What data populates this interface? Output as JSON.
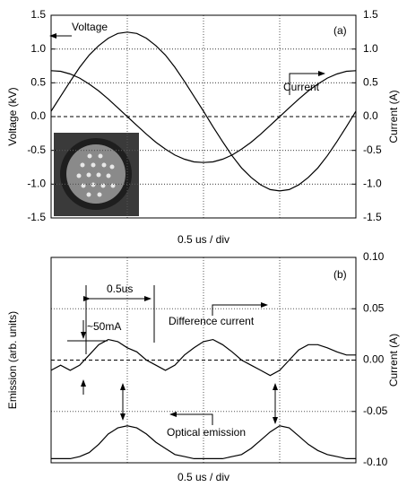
{
  "chart_data": [
    {
      "type": "line",
      "annotations": [
        "(a)"
      ],
      "xlabel": "0.5 us / div",
      "ylabel": "Voltage (kV)",
      "y2label": "Current (A)",
      "xlim": [
        0,
        4
      ],
      "x": [
        0,
        0.125,
        0.25,
        0.375,
        0.5,
        0.625,
        0.75,
        0.875,
        1,
        1.125,
        1.25,
        1.375,
        1.5,
        1.625,
        1.75,
        1.875,
        2,
        2.125,
        2.25,
        2.375,
        2.5,
        2.625,
        2.75,
        2.875,
        3,
        3.125,
        3.25,
        3.375,
        3.5,
        3.625,
        3.75,
        3.875,
        4
      ],
      "ylim": [
        -1.5,
        1.5
      ],
      "yticks": [
        {
          "value": 1.5,
          "label": "1.5"
        },
        {
          "value": 1,
          "label": "1.0"
        },
        {
          "value": 0.5,
          "label": "0.5"
        },
        {
          "value": 0,
          "label": "0.0"
        },
        {
          "value": -0.5,
          "label": "-0.5"
        },
        {
          "value": -1,
          "label": "-1.0"
        },
        {
          "value": -1.5,
          "label": "-1.5"
        }
      ],
      "y2lim": [
        -1.5,
        1.5
      ],
      "y2ticks": [
        {
          "value": 1.5,
          "label": "1.5"
        },
        {
          "value": 1,
          "label": "1.0"
        },
        {
          "value": 0.5,
          "label": "0.5"
        },
        {
          "value": 0,
          "label": "0.0"
        },
        {
          "value": -0.5,
          "label": "-0.5"
        },
        {
          "value": -1,
          "label": "-1.0"
        },
        {
          "value": -1.5,
          "label": "-1.5"
        }
      ],
      "grid": true,
      "series": [
        {
          "name": "Voltage",
          "color": "#000000",
          "values": [
            0.08,
            0.3,
            0.52,
            0.73,
            0.91,
            1.05,
            1.16,
            1.23,
            1.25,
            1.23,
            1.16,
            1.05,
            0.91,
            0.73,
            0.52,
            0.3,
            0.08,
            -0.15,
            -0.37,
            -0.58,
            -0.76,
            -0.9,
            -1.01,
            -1.08,
            -1.1,
            -1.08,
            -1.01,
            -0.9,
            -0.76,
            -0.58,
            -0.37,
            -0.15,
            0.08
          ]
        },
        {
          "name": "Current",
          "color": "#000000",
          "axis": "y2",
          "values": [
            0.68,
            0.67,
            0.63,
            0.57,
            0.48,
            0.38,
            0.26,
            0.13,
            0,
            -0.13,
            -0.26,
            -0.38,
            -0.48,
            -0.57,
            -0.63,
            -0.67,
            -0.68,
            -0.67,
            -0.63,
            -0.57,
            -0.48,
            -0.38,
            -0.26,
            -0.13,
            0,
            0.13,
            0.26,
            0.38,
            0.48,
            0.57,
            0.63,
            0.67,
            0.68
          ]
        }
      ]
    },
    {
      "type": "line",
      "annotations": [
        "(b)",
        "0.5us",
        "~50mA"
      ],
      "xlabel": "0.5 us / div",
      "ylabel": "Emission (arb. units)",
      "y2label": "Current (A)",
      "xlim": [
        0,
        4
      ],
      "x": [
        0,
        0.125,
        0.25,
        0.375,
        0.5,
        0.625,
        0.75,
        0.875,
        1,
        1.125,
        1.25,
        1.375,
        1.5,
        1.625,
        1.75,
        1.875,
        2,
        2.125,
        2.25,
        2.375,
        2.5,
        2.625,
        2.75,
        2.875,
        3,
        3.125,
        3.25,
        3.375,
        3.5,
        3.625,
        3.75,
        3.875,
        4
      ],
      "ylim": [
        0,
        1
      ],
      "y2lim": [
        -0.1,
        0.1
      ],
      "y2ticks": [
        {
          "value": 0.1,
          "label": "0.10"
        },
        {
          "value": 0.05,
          "label": "0.05"
        },
        {
          "value": 0,
          "label": "0.00"
        },
        {
          "value": -0.05,
          "label": "-0.05"
        },
        {
          "value": -0.1,
          "label": "-0.10"
        }
      ],
      "grid": true,
      "series": [
        {
          "name": "Difference current",
          "color": "#000000",
          "axis": "y2",
          "values": [
            -0.01,
            -0.005,
            -0.01,
            -0.005,
            0.005,
            0.015,
            0.02,
            0.018,
            0.012,
            0.008,
            0,
            -0.005,
            -0.01,
            -0.005,
            0.005,
            0.012,
            0.018,
            0.02,
            0.015,
            0.008,
            0,
            -0.005,
            -0.01,
            -0.015,
            -0.01,
            0,
            0.01,
            0.015,
            0.015,
            0.012,
            0.008,
            0.005,
            0.005
          ]
        },
        {
          "name": "Optical emission",
          "color": "#000000",
          "values": [
            0.02,
            0.02,
            0.02,
            0.03,
            0.05,
            0.09,
            0.14,
            0.17,
            0.18,
            0.17,
            0.14,
            0.1,
            0.07,
            0.04,
            0.03,
            0.02,
            0.02,
            0.02,
            0.02,
            0.03,
            0.04,
            0.07,
            0.11,
            0.15,
            0.18,
            0.17,
            0.13,
            0.09,
            0.06,
            0.04,
            0.03,
            0.02,
            0.02
          ]
        }
      ]
    }
  ]
}
